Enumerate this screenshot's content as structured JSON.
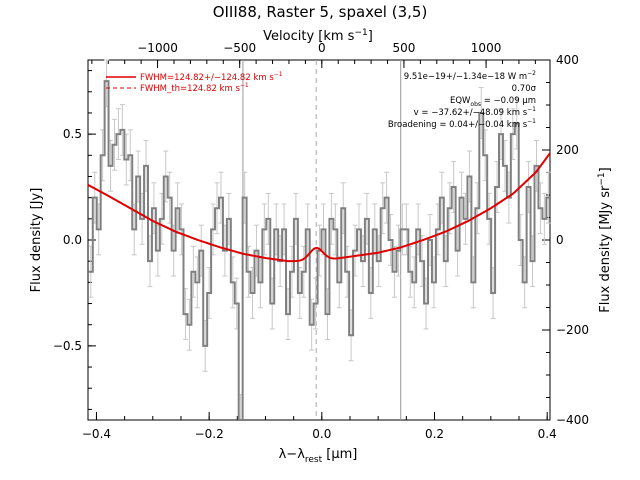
{
  "chart_data": {
    "type": "line",
    "title": "OIII88, Raster 5, spaxel (3,5)",
    "xlabel": "λ−λ",
    "xlabel_sub": "rest",
    "xlabel_unit": " [μm]",
    "ylabel": "Flux density [Jy]",
    "y2label": "Flux density [MJy sr",
    "y2label_sup": "−1",
    "y2label_end": "]",
    "x2label": "Velocity [km s",
    "x2label_sup": "−1",
    "x2label_end": "]",
    "xlim": [
      -0.415,
      0.405
    ],
    "ylim": [
      -0.85,
      0.85
    ],
    "y2lim": [
      -400,
      400
    ],
    "v_per_um": 3430,
    "xticks": [
      -0.4,
      -0.2,
      0.0,
      0.2,
      0.4
    ],
    "xtick_labels": [
      "−0.4",
      "−0.2",
      "0.0",
      "0.2",
      "0.4"
    ],
    "yticks": [
      -0.5,
      0.0,
      0.5
    ],
    "ytick_labels": [
      "−0.5",
      "0.0",
      "0.5"
    ],
    "y2ticks": [
      -400,
      -200,
      0,
      200,
      400
    ],
    "y2tick_labels": [
      "−400",
      "−200",
      "0",
      "200",
      "400"
    ],
    "vticks": [
      -1000,
      -500,
      0,
      500,
      1000
    ],
    "vtick_labels": [
      "−1000",
      "−500",
      "0",
      "500",
      "1000"
    ],
    "vertical_lines": [
      -0.14,
      0.14
    ],
    "center_line": -0.01,
    "grid": false,
    "spectrum": {
      "x": [
        -0.41,
        -0.403,
        -0.396,
        -0.389,
        -0.382,
        -0.375,
        -0.368,
        -0.361,
        -0.354,
        -0.347,
        -0.34,
        -0.333,
        -0.326,
        -0.319,
        -0.312,
        -0.305,
        -0.298,
        -0.291,
        -0.284,
        -0.277,
        -0.27,
        -0.263,
        -0.256,
        -0.249,
        -0.242,
        -0.235,
        -0.228,
        -0.221,
        -0.214,
        -0.207,
        -0.2,
        -0.193,
        -0.186,
        -0.179,
        -0.172,
        -0.165,
        -0.158,
        -0.151,
        -0.144,
        -0.137,
        -0.13,
        -0.123,
        -0.116,
        -0.109,
        -0.102,
        -0.095,
        -0.088,
        -0.081,
        -0.074,
        -0.067,
        -0.06,
        -0.053,
        -0.046,
        -0.039,
        -0.032,
        -0.025,
        -0.018,
        -0.011,
        -0.004,
        0.003,
        0.01,
        0.017,
        0.024,
        0.031,
        0.038,
        0.045,
        0.052,
        0.059,
        0.066,
        0.073,
        0.08,
        0.087,
        0.094,
        0.101,
        0.108,
        0.115,
        0.122,
        0.129,
        0.136,
        0.143,
        0.15,
        0.157,
        0.164,
        0.171,
        0.178,
        0.185,
        0.192,
        0.199,
        0.206,
        0.213,
        0.22,
        0.227,
        0.234,
        0.241,
        0.248,
        0.255,
        0.262,
        0.269,
        0.276,
        0.283,
        0.29,
        0.297,
        0.304,
        0.311,
        0.318,
        0.325,
        0.332,
        0.339,
        0.346,
        0.353,
        0.36,
        0.367,
        0.374,
        0.381,
        0.388,
        0.395,
        0.402
      ],
      "y": [
        -0.15,
        0.2,
        0.05,
        0.4,
        0.75,
        0.35,
        0.45,
        0.5,
        0.52,
        0.38,
        0.4,
        0.05,
        0.3,
        0.1,
        0.35,
        -0.1,
        0.15,
        -0.05,
        0.1,
        0.3,
        0.2,
        -0.05,
        0.15,
        0.05,
        -0.35,
        -0.4,
        -0.15,
        -0.2,
        -0.05,
        -0.5,
        -0.25,
        0.05,
        0.15,
        0.2,
        -0.05,
        0.1,
        -0.2,
        -0.3,
        -0.85,
        0.2,
        -0.15,
        -0.25,
        -0.05,
        -0.2,
        0.05,
        0.1,
        -0.3,
        0.05,
        -0.1,
        0.05,
        -0.35,
        -0.15,
        0.1,
        -0.25,
        -0.15,
        0.05,
        -0.4,
        -0.3,
        -0.05,
        0.05,
        -0.35,
        0.1,
        0.05,
        -0.2,
        0.15,
        -0.15,
        -0.45,
        -0.05,
        0.05,
        -0.1,
        0.1,
        -0.25,
        0.05,
        -0.1,
        0.15,
        0.2,
        0.0,
        -0.15,
        -0.05,
        0.05,
        0.05,
        -0.15,
        -0.2,
        0.05,
        -0.1,
        -0.3,
        0.0,
        -0.2,
        0.05,
        0.2,
        -0.1,
        0.15,
        0.25,
        -0.05,
        0.2,
        0.1,
        0.3,
        -0.2,
        0.15,
        0.6,
        0.4,
        0.1,
        -0.25,
        0.25,
        0.5,
        0.35,
        0.2,
        0.5,
        0.55,
        0.0,
        -0.2,
        0.25,
        -0.1,
        0.35,
        0.15,
        0.1,
        0.2
      ],
      "err": 0.12
    },
    "fit_line_x": [
      -0.415,
      -0.38,
      -0.34,
      -0.3,
      -0.26,
      -0.22,
      -0.18,
      -0.14,
      -0.1,
      -0.06,
      -0.02,
      0.02,
      0.06,
      0.1,
      0.14,
      0.18,
      0.22,
      0.26,
      0.3,
      0.34,
      0.38,
      0.405
    ],
    "fit_line_y": [
      0.26,
      0.21,
      0.15,
      0.09,
      0.04,
      0.0,
      -0.035,
      -0.065,
      -0.085,
      -0.1,
      -0.1,
      -0.09,
      -0.075,
      -0.06,
      -0.035,
      0.0,
      0.04,
      0.09,
      0.15,
      0.22,
      0.32,
      0.41
    ],
    "fit_gauss": {
      "center": -0.01,
      "peak_height": 0.06,
      "sigma": 0.012
    },
    "legend_placement": "top-left",
    "legend": [
      {
        "label": "FWHM=124.82+/−124.82 km s",
        "sup": "−1",
        "style": "solid",
        "color": "#e00000"
      },
      {
        "label": "FWHM_th=124.82 km s",
        "sup": "−1",
        "style": "dashed",
        "color": "#e00000"
      }
    ],
    "annotation_placement": "top-right",
    "annotations": [
      "9.51e−19+/−1.34e−18 W m",
      "0.70σ",
      "EQW",
      "v = −37.62+/−48.09 km s",
      "Broadening = 0.04+/−0.04 km s"
    ],
    "annotation_sups": [
      "−2",
      "",
      "",
      "−1",
      "−1"
    ],
    "eqw_sub": "obs",
    "eqw_value": " = −0.09 μm"
  }
}
